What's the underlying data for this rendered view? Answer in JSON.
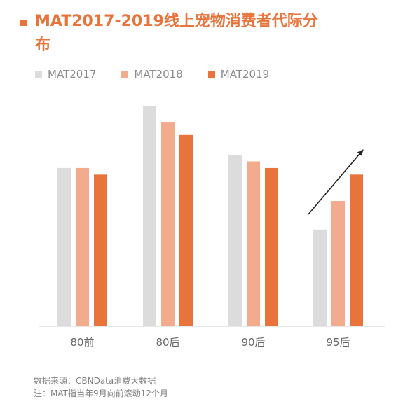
{
  "title": "MAT2017-2019线上宠物消费者代际分布",
  "legend": [
    {
      "label": "MAT2017",
      "color": "#dcdcdc"
    },
    {
      "label": "MAT2018",
      "color": "#f2ab8c"
    },
    {
      "label": "MAT2019",
      "color": "#e8743b"
    }
  ],
  "footnotes": {
    "source": "数据来源：CBNData消费大数据",
    "note": "注：MAT指当年9月向前滚动12个月"
  },
  "chart_data": {
    "type": "bar",
    "categories": [
      "80前",
      "80后",
      "90后",
      "95后"
    ],
    "series": [
      {
        "name": "MAT2017",
        "values": [
          72,
          100,
          78,
          44
        ]
      },
      {
        "name": "MAT2018",
        "values": [
          72,
          93,
          75,
          57
        ]
      },
      {
        "name": "MAT2019",
        "values": [
          69,
          87,
          72,
          69
        ]
      }
    ],
    "ylim": [
      0,
      100
    ],
    "grid": false,
    "legend_position": "top-left",
    "annotation": "upward trend arrow above 95后",
    "colors": [
      "#dcdcdc",
      "#f2ab8c",
      "#e8743b"
    ]
  }
}
